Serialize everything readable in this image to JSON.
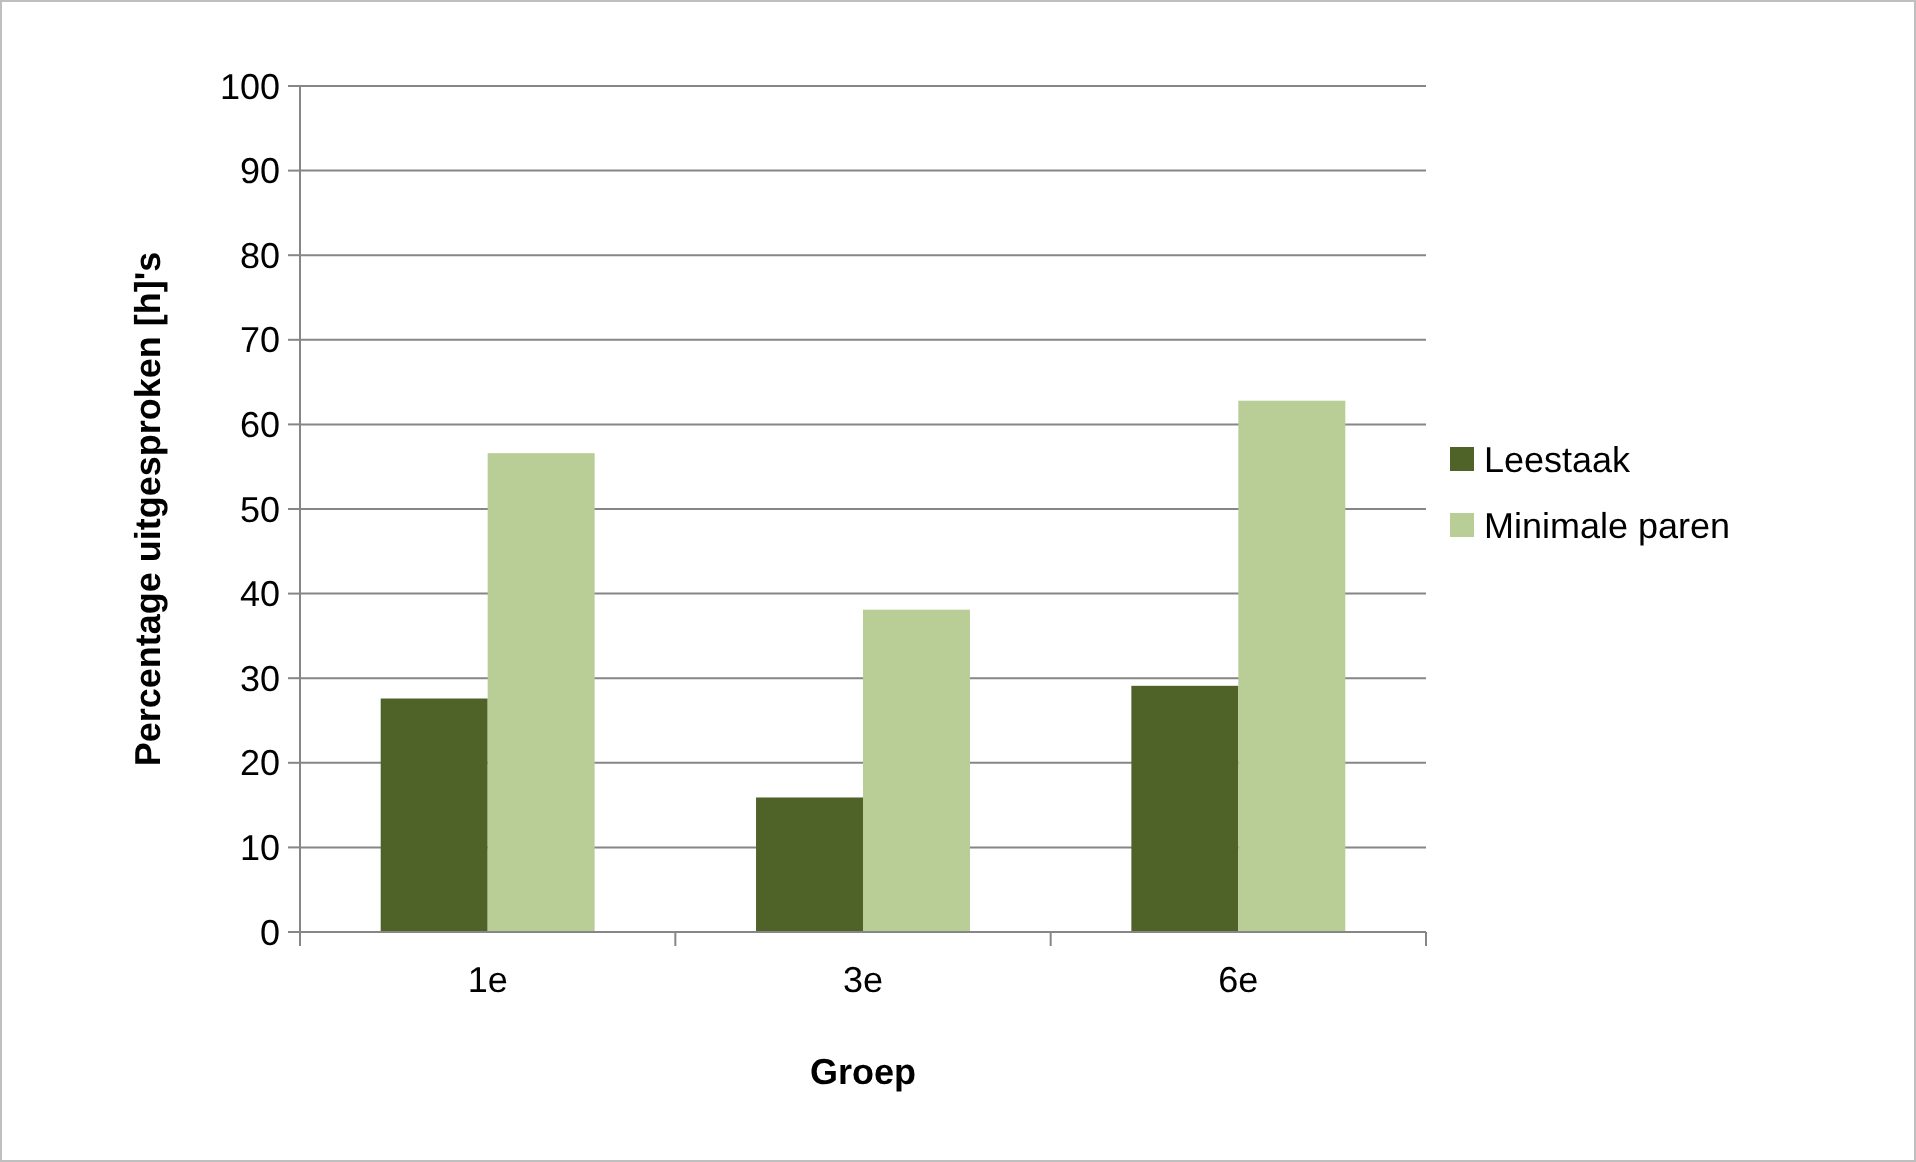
{
  "chart_data": {
    "type": "bar",
    "xlabel": "Groep",
    "ylabel": "Percentage uitgesproken [h]'s",
    "categories": [
      "1e",
      "3e",
      "6e"
    ],
    "series": [
      {
        "name": "Leestaak",
        "color": "#4f6228",
        "values": [
          27.6,
          15.9,
          29.1
        ]
      },
      {
        "name": "Minimale paren",
        "color": "#b9cd96",
        "values": [
          56.6,
          38.1,
          62.8
        ]
      }
    ],
    "ylim": [
      0,
      100
    ],
    "yticks": [
      0,
      10,
      20,
      30,
      40,
      50,
      60,
      70,
      80,
      90,
      100
    ],
    "grid": "y",
    "legend": "right"
  }
}
